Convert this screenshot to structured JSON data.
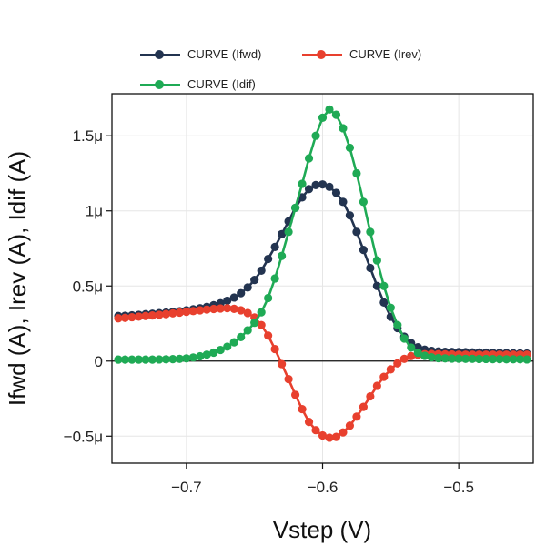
{
  "chart_data": {
    "type": "line",
    "title": "",
    "xlabel": "Vstep (V)",
    "ylabel": "Ifwd (A), Irev (A), Idif (A)",
    "xlim": [
      -0.7547,
      -0.4453
    ],
    "ylim": [
      -6.8e-07,
      1.78e-06
    ],
    "xticks": [
      -0.7,
      -0.6,
      -0.5
    ],
    "xtick_labels": [
      "−0.7",
      "−0.6",
      "−0.5"
    ],
    "yticks": [
      -5e-07,
      0,
      5e-07,
      1e-06,
      1.5e-06
    ],
    "ytick_labels": [
      "−0.5μ",
      "0",
      "0.5μ",
      "1μ",
      "1.5μ"
    ],
    "grid": true,
    "zero_line": true,
    "legend_position": "top",
    "series": [
      {
        "name": "CURVE (Ifwd)",
        "color": "#233450",
        "x": [
          -0.75,
          -0.745,
          -0.74,
          -0.735,
          -0.73,
          -0.725,
          -0.72,
          -0.715,
          -0.71,
          -0.705,
          -0.7,
          -0.695,
          -0.69,
          -0.685,
          -0.68,
          -0.675,
          -0.67,
          -0.665,
          -0.66,
          -0.655,
          -0.65,
          -0.645,
          -0.64,
          -0.635,
          -0.63,
          -0.625,
          -0.62,
          -0.615,
          -0.61,
          -0.605,
          -0.6,
          -0.595,
          -0.59,
          -0.585,
          -0.58,
          -0.575,
          -0.57,
          -0.565,
          -0.56,
          -0.555,
          -0.55,
          -0.545,
          -0.54,
          -0.535,
          -0.53,
          -0.525,
          -0.52,
          -0.515,
          -0.51,
          -0.505,
          -0.5,
          -0.495,
          -0.49,
          -0.485,
          -0.48,
          -0.475,
          -0.47,
          -0.465,
          -0.46,
          -0.455,
          -0.45
        ],
        "values": [
          3e-07,
          3.02e-07,
          3.05e-07,
          3.08e-07,
          3.12e-07,
          3.15e-07,
          3.19e-07,
          3.23e-07,
          3.27e-07,
          3.32e-07,
          3.38e-07,
          3.45e-07,
          3.52e-07,
          3.61e-07,
          3.72e-07,
          3.85e-07,
          4.02e-07,
          4.23e-07,
          4.52e-07,
          4.9e-07,
          5.4e-07,
          6.02e-07,
          6.8e-07,
          7.6e-07,
          8.45e-07,
          9.3e-07,
          1.02e-06,
          1.09e-06,
          1.145e-06,
          1.172e-06,
          1.176e-06,
          1.16e-06,
          1.12e-06,
          1.06e-06,
          9.7e-07,
          8.6e-07,
          7.4e-07,
          6.2e-07,
          5e-07,
          3.9e-07,
          2.95e-07,
          2.2e-07,
          1.62e-07,
          1.2e-07,
          9.2e-08,
          7.6e-08,
          6.8e-08,
          6.4e-08,
          6.2e-08,
          6.1e-08,
          6e-08,
          5.9e-08,
          5.8e-08,
          5.7e-08,
          5.6e-08,
          5.5e-08,
          5.4e-08,
          5.3e-08,
          5.2e-08,
          5.1e-08,
          5e-08
        ]
      },
      {
        "name": "CURVE (Irev)",
        "color": "#e8402e",
        "x": [
          -0.75,
          -0.745,
          -0.74,
          -0.735,
          -0.73,
          -0.725,
          -0.72,
          -0.715,
          -0.71,
          -0.705,
          -0.7,
          -0.695,
          -0.69,
          -0.685,
          -0.68,
          -0.675,
          -0.67,
          -0.665,
          -0.66,
          -0.655,
          -0.65,
          -0.645,
          -0.64,
          -0.635,
          -0.63,
          -0.625,
          -0.62,
          -0.615,
          -0.61,
          -0.605,
          -0.6,
          -0.595,
          -0.59,
          -0.585,
          -0.58,
          -0.575,
          -0.57,
          -0.565,
          -0.56,
          -0.555,
          -0.55,
          -0.545,
          -0.54,
          -0.535,
          -0.53,
          -0.525,
          -0.52,
          -0.515,
          -0.51,
          -0.505,
          -0.5,
          -0.495,
          -0.49,
          -0.485,
          -0.48,
          -0.475,
          -0.47,
          -0.465,
          -0.46,
          -0.455,
          -0.45
        ],
        "values": [
          2.85e-07,
          2.88e-07,
          2.92e-07,
          2.96e-07,
          3e-07,
          3.04e-07,
          3.08e-07,
          3.13e-07,
          3.18e-07,
          3.23e-07,
          3.28e-07,
          3.33e-07,
          3.38e-07,
          3.43e-07,
          3.47e-07,
          3.5e-07,
          3.52e-07,
          3.48e-07,
          3.38e-07,
          3.2e-07,
          2.9e-07,
          2.4e-07,
          1.7e-07,
          8e-08,
          -2e-08,
          -1.2e-07,
          -2.25e-07,
          -3.2e-07,
          -4.05e-07,
          -4.6e-07,
          -4.95e-07,
          -5.1e-07,
          -5.05e-07,
          -4.75e-07,
          -4.3e-07,
          -3.7e-07,
          -3.05e-07,
          -2.35e-07,
          -1.65e-07,
          -1.05e-07,
          -5.5e-08,
          -1.5e-08,
          1.5e-08,
          3.3e-08,
          4.2e-08,
          4.6e-08,
          4.7e-08,
          4.6e-08,
          4.5e-08,
          4.4e-08,
          4.3e-08,
          4.3e-08,
          4.3e-08,
          4.3e-08,
          4.3e-08,
          4.3e-08,
          4.3e-08,
          4.3e-08,
          4.3e-08,
          4.3e-08,
          4.3e-08
        ]
      },
      {
        "name": "CURVE (Idif)",
        "color": "#1faa55",
        "x": [
          -0.75,
          -0.745,
          -0.74,
          -0.735,
          -0.73,
          -0.725,
          -0.72,
          -0.715,
          -0.71,
          -0.705,
          -0.7,
          -0.695,
          -0.69,
          -0.685,
          -0.68,
          -0.675,
          -0.67,
          -0.665,
          -0.66,
          -0.655,
          -0.65,
          -0.645,
          -0.64,
          -0.635,
          -0.63,
          -0.625,
          -0.62,
          -0.615,
          -0.61,
          -0.605,
          -0.6,
          -0.595,
          -0.59,
          -0.585,
          -0.58,
          -0.575,
          -0.57,
          -0.565,
          -0.56,
          -0.555,
          -0.55,
          -0.545,
          -0.54,
          -0.535,
          -0.53,
          -0.525,
          -0.52,
          -0.515,
          -0.51,
          -0.505,
          -0.5,
          -0.495,
          -0.49,
          -0.485,
          -0.48,
          -0.475,
          -0.47,
          -0.465,
          -0.46,
          -0.455,
          -0.45
        ],
        "values": [
          1e-08,
          1e-08,
          1e-08,
          1e-08,
          1e-08,
          1e-08,
          1.1e-08,
          1.2e-08,
          1.3e-08,
          1.5e-08,
          1.8e-08,
          2.4e-08,
          3.2e-08,
          4.3e-08,
          5.6e-08,
          7.4e-08,
          9.6e-08,
          1.25e-07,
          1.6e-07,
          2.05e-07,
          2.55e-07,
          3.25e-07,
          4.2e-07,
          5.5e-07,
          7e-07,
          8.6e-07,
          1.02e-06,
          1.18e-06,
          1.35e-06,
          1.5e-06,
          1.62e-06,
          1.675e-06,
          1.64e-06,
          1.55e-06,
          1.42e-06,
          1.25e-06,
          1.06e-06,
          8.6e-07,
          6.7e-07,
          5e-07,
          3.55e-07,
          2.4e-07,
          1.5e-07,
          9e-08,
          5.5e-08,
          3.5e-08,
          2.5e-08,
          2e-08,
          1.8e-08,
          1.7e-08,
          1.6e-08,
          1.5e-08,
          1.5e-08,
          1.4e-08,
          1.4e-08,
          1.3e-08,
          1.3e-08,
          1.2e-08,
          1.2e-08,
          1.2e-08,
          1.1e-08
        ]
      }
    ]
  }
}
